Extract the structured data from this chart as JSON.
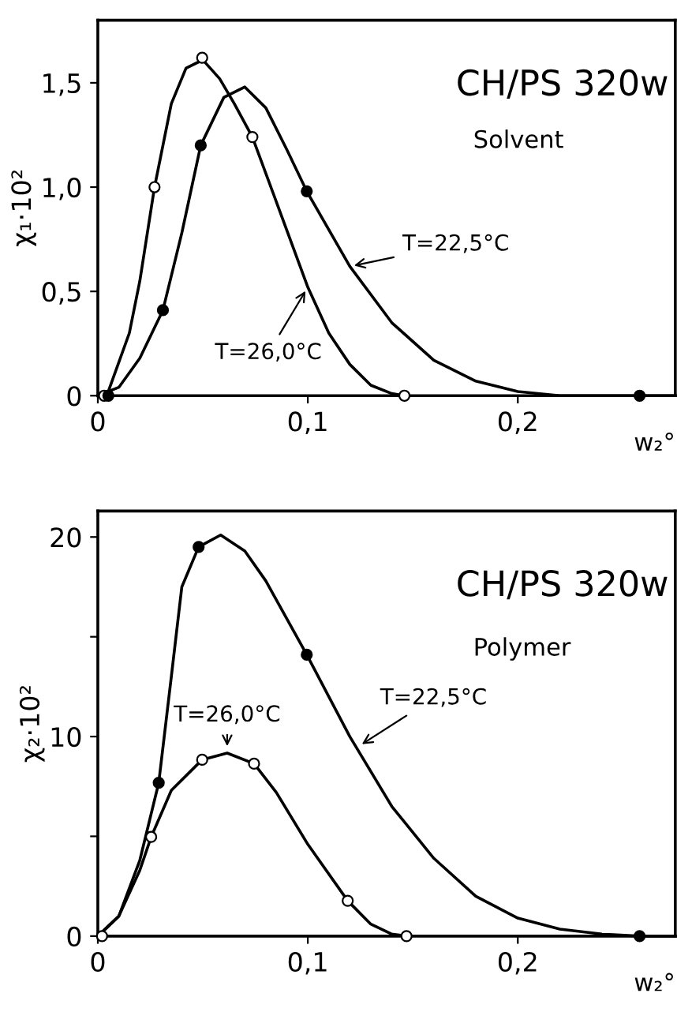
{
  "chart_data": [
    {
      "type": "line",
      "title": "CH/PS 320w",
      "subtitle": "Solvent",
      "xlabel": "w₂°",
      "ylabel": "χ₁·10²",
      "xlim": [
        0,
        0.275
      ],
      "ylim": [
        0,
        1.8
      ],
      "xticks": [
        {
          "value": 0,
          "label": "0"
        },
        {
          "value": 0.1,
          "label": "0,1"
        },
        {
          "value": 0.2,
          "label": "0,2"
        }
      ],
      "yticks": [
        {
          "value": 0,
          "label": "0"
        },
        {
          "value": 0.5,
          "label": "0,5"
        },
        {
          "value": 1.0,
          "label": "1,0"
        },
        {
          "value": 1.5,
          "label": "1,5"
        }
      ],
      "grid": false,
      "legend": false,
      "series": [
        {
          "type": "line",
          "color": "#000000",
          "marker": "none",
          "line_style": "solid",
          "x": [
            0,
            0.005,
            0.015,
            0.02,
            0.027,
            0.035,
            0.042,
            0.05,
            0.058,
            0.065,
            0.0736,
            0.085,
            0.1,
            0.11,
            0.12,
            0.13,
            0.14,
            0.146
          ],
          "values": [
            0,
            0.02,
            0.3,
            0.55,
            1.0,
            1.4,
            1.57,
            1.61,
            1.52,
            1.4,
            1.24,
            0.93,
            0.52,
            0.3,
            0.15,
            0.05,
            0.01,
            0
          ]
        },
        {
          "type": "scatter",
          "color": "#ffffff",
          "marker": "circle",
          "x": [
            0.003,
            0.027,
            0.0497,
            0.0736,
            0.146
          ],
          "values": [
            0,
            1.0,
            1.62,
            1.24,
            0
          ]
        },
        {
          "type": "line",
          "color": "#000000",
          "marker": "none",
          "line_style": "solid",
          "x": [
            0,
            0.01,
            0.02,
            0.031,
            0.04,
            0.049,
            0.06,
            0.07,
            0.08,
            0.09,
            0.0995,
            0.12,
            0.14,
            0.16,
            0.18,
            0.2,
            0.22,
            0.258,
            0.275
          ],
          "values": [
            0,
            0.04,
            0.18,
            0.41,
            0.78,
            1.2,
            1.43,
            1.48,
            1.38,
            1.18,
            0.98,
            0.62,
            0.35,
            0.17,
            0.07,
            0.02,
            0,
            0,
            0
          ]
        },
        {
          "type": "scatter",
          "color": "#000000",
          "marker": "circle",
          "x": [
            0.005,
            0.031,
            0.049,
            0.0995,
            0.258
          ],
          "values": [
            0,
            0.41,
            1.2,
            0.98,
            0
          ]
        }
      ],
      "annotations": [
        {
          "text": "T=22,5°C",
          "x": 0.12,
          "y": 0.62
        },
        {
          "text": "T=26,0°C",
          "x": 0.1,
          "y": 0.52
        }
      ]
    },
    {
      "type": "line",
      "title": "CH/PS 320w",
      "subtitle": "Polymer",
      "xlabel": "w₂°",
      "ylabel": "χ₂·10²",
      "xlim": [
        0,
        0.275
      ],
      "ylim": [
        0,
        21.3
      ],
      "xticks": [
        {
          "value": 0,
          "label": "0"
        },
        {
          "value": 0.1,
          "label": "0,1"
        },
        {
          "value": 0.2,
          "label": "0,2"
        }
      ],
      "yticks": [
        0,
        {
          "value": 5,
          "label": null
        },
        10,
        {
          "value": 15,
          "label": null
        },
        20
      ],
      "grid": false,
      "legend": false,
      "series": [
        {
          "type": "line",
          "color": "#000000",
          "marker": "none",
          "line_style": "solid",
          "x": [
            0,
            0.01,
            0.02,
            0.0254,
            0.035,
            0.0497,
            0.0616,
            0.0744,
            0.085,
            0.1,
            0.119,
            0.13,
            0.14,
            0.147
          ],
          "values": [
            0,
            1.0,
            3.3,
            4.97,
            7.3,
            8.84,
            9.17,
            8.64,
            7.2,
            4.6,
            1.77,
            0.6,
            0.1,
            0
          ]
        },
        {
          "type": "scatter",
          "color": "#ffffff",
          "marker": "circle",
          "x": [
            0.002,
            0.0254,
            0.0497,
            0.0744,
            0.119,
            0.147
          ],
          "values": [
            0,
            4.97,
            8.84,
            8.64,
            1.77,
            0
          ]
        },
        {
          "type": "line",
          "color": "#000000",
          "marker": "none",
          "line_style": "solid",
          "x": [
            0,
            0.01,
            0.02,
            0.029,
            0.035,
            0.04,
            0.048,
            0.0585,
            0.07,
            0.08,
            0.0995,
            0.12,
            0.14,
            0.16,
            0.18,
            0.2,
            0.22,
            0.24,
            0.258,
            0.275
          ],
          "values": [
            0,
            1.0,
            3.8,
            7.68,
            13,
            17.5,
            19.5,
            20.1,
            19.3,
            17.8,
            14.1,
            10.0,
            6.5,
            3.9,
            2.0,
            0.9,
            0.35,
            0.1,
            0,
            0
          ]
        },
        {
          "type": "scatter",
          "color": "#000000",
          "marker": "circle",
          "x": [
            0.029,
            0.048,
            0.0995,
            0.258
          ],
          "values": [
            7.68,
            19.5,
            14.1,
            0
          ]
        }
      ],
      "annotations": [
        {
          "text": "T=26,0°C",
          "x": 0.0616,
          "y": 9.3
        },
        {
          "text": "T=22,5°C",
          "x": 0.124,
          "y": 9.5
        }
      ]
    }
  ]
}
